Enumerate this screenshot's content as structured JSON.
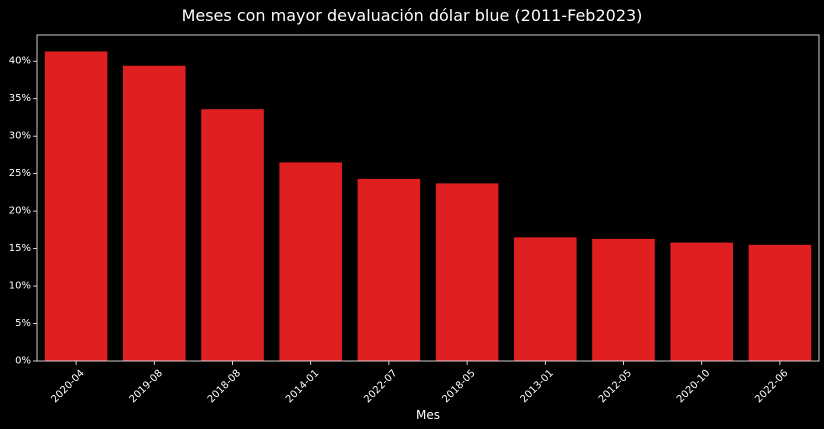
{
  "chart_data": {
    "type": "bar",
    "title": "Meses con mayor devaluación dólar blue (2011-Feb2023)",
    "xlabel": "Mes",
    "ylabel": "",
    "categories": [
      "2020-04",
      "2019-08",
      "2018-08",
      "2014-01",
      "2022-07",
      "2018-05",
      "2013-01",
      "2012-05",
      "2020-10",
      "2022-06"
    ],
    "values": [
      41.3,
      39.4,
      33.6,
      26.5,
      24.3,
      23.7,
      16.5,
      16.3,
      15.8,
      15.5
    ],
    "ylim": [
      0,
      43.5
    ],
    "yticks": [
      0,
      5,
      10,
      15,
      20,
      25,
      30,
      35,
      40
    ],
    "ytick_labels": [
      "0%",
      "5%",
      "10%",
      "15%",
      "20%",
      "25%",
      "30%",
      "35%",
      "40%"
    ],
    "grid": false,
    "legend": "none",
    "colors": {
      "bar": "#e02020",
      "background": "#000000",
      "text": "#ffffff",
      "axis": "#ffffff"
    }
  }
}
